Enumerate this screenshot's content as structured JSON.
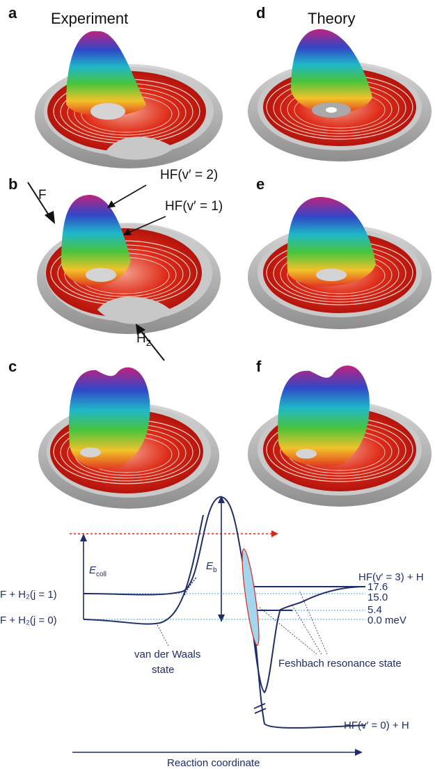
{
  "panels": {
    "a": "a",
    "b": "b",
    "c": "c",
    "d": "d",
    "e": "e",
    "f": "f"
  },
  "titles": {
    "experiment": "Experiment",
    "theory": "Theory"
  },
  "annotations_b": {
    "f": "F",
    "h2_main": "H",
    "h2_sub": "2",
    "hf_v2": "HF(v′ = 2)",
    "hf_v1": "HF(v′ = 1)"
  },
  "diagram": {
    "e_coll_main": "E",
    "e_coll_sub": "coll",
    "e_b_main": "E",
    "e_b_sub": "b",
    "f_h2_j1": "F + H₂(j = 1)",
    "f_h2_j0": "F + H₂(j = 0)",
    "vdw_line1": "van der Waals",
    "vdw_line2": "state",
    "feshbach": "Feshbach resonance state",
    "hf_v3": "HF(v′ = 3) + H",
    "hf_v0": "HF(v′ = 0) + H",
    "lvl_176": "17.6",
    "lvl_150": "15.0",
    "lvl_54": "5.4",
    "lvl_00": "0.0 meV",
    "xaxis": "Reaction coordinate"
  }
}
